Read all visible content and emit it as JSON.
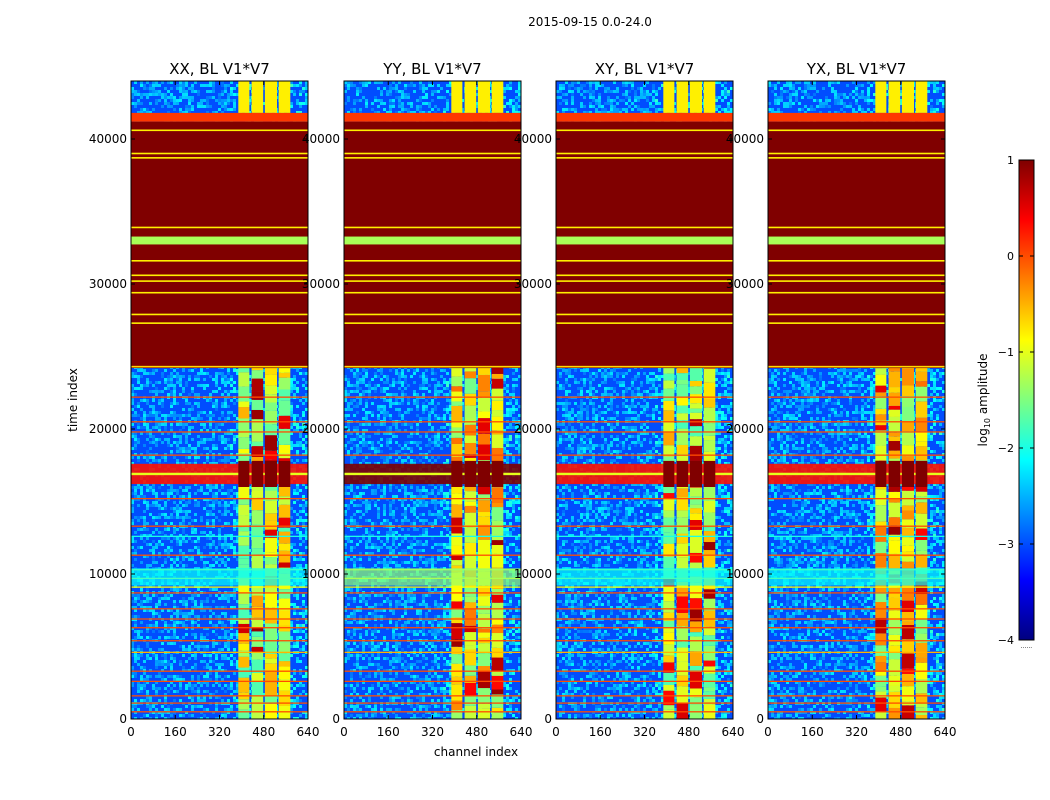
{
  "figure": {
    "suptitle": "2015-09-15 0.0-24.0",
    "xlabel": "channel index",
    "ylabel": "time index"
  },
  "colorbar": {
    "label": "log",
    "label_sub": "10",
    "label_tail": " amplitude",
    "range": [
      -4,
      1
    ],
    "ticks": [
      1,
      0,
      -1,
      -2,
      -3,
      -4
    ],
    "tick_labels": [
      "1",
      "0",
      "−1",
      "−2",
      "−3",
      "−4"
    ],
    "colormap": "jet",
    "colors": [
      "#00007f",
      "#0000ff",
      "#007fff",
      "#00ffff",
      "#7fff7f",
      "#ffff00",
      "#ff7f00",
      "#ff0000",
      "#7f0000"
    ],
    "footer_text": "......"
  },
  "chart_data": {
    "type": "heatmap",
    "panels": [
      {
        "title": "XX, BL V1*V7",
        "variant": "xx"
      },
      {
        "title": "YY, BL V1*V7",
        "variant": "yy"
      },
      {
        "title": "XY, BL V1*V7",
        "variant": "xy"
      },
      {
        "title": "YX, BL V1*V7",
        "variant": "yx"
      }
    ],
    "x_range": [
      0,
      640
    ],
    "y_range": [
      0,
      44000
    ],
    "x_ticks": [
      0,
      160,
      320,
      480,
      640
    ],
    "x_tick_labels": [
      "0",
      "160",
      "320",
      "480",
      "640"
    ],
    "y_ticks": [
      0,
      10000,
      20000,
      30000,
      40000
    ],
    "y_tick_labels": [
      "0",
      "10000",
      "20000",
      "30000",
      "40000"
    ],
    "value_units": "log10 amplitude",
    "background_level": -3.0,
    "flagged_blocks": [
      {
        "t0": 24200,
        "t1": 41200,
        "level": 1.0
      },
      {
        "t0": 41200,
        "t1": 41800,
        "level": 0.1
      }
    ],
    "thin_lines": [
      {
        "t": 24300,
        "level": -0.7,
        "full_width": true
      },
      {
        "t": 27300,
        "level": -0.8,
        "full_width": true
      },
      {
        "t": 27900,
        "level": -0.8,
        "full_width": true
      },
      {
        "t": 29400,
        "level": -0.8,
        "full_width": true
      },
      {
        "t": 30200,
        "level": -0.8,
        "full_width": true
      },
      {
        "t": 30600,
        "level": -0.8,
        "full_width": true
      },
      {
        "t": 31600,
        "level": -0.8,
        "full_width": true
      },
      {
        "t": 32900,
        "level": -1.3,
        "full_width": true
      },
      {
        "t": 33100,
        "level": -1.3,
        "full_width": true
      },
      {
        "t": 33900,
        "level": -0.8,
        "full_width": true
      },
      {
        "t": 38700,
        "level": -0.8,
        "full_width": true
      },
      {
        "t": 39000,
        "level": -0.8,
        "full_width": true
      },
      {
        "t": 40600,
        "level": -0.8,
        "full_width": true
      },
      {
        "t": 22200,
        "level": 0.0
      },
      {
        "t": 20500,
        "level": 0.0
      },
      {
        "t": 19800,
        "level": 0.0
      },
      {
        "t": 18200,
        "level": 0.0
      },
      {
        "t": 15200,
        "level": 0.0
      },
      {
        "t": 13300,
        "level": 0.0
      },
      {
        "t": 12600,
        "level": -2.0
      },
      {
        "t": 11300,
        "level": 0.0
      },
      {
        "t": 10300,
        "level": -1.2
      },
      {
        "t": 9700,
        "level": -1.0
      },
      {
        "t": 9100,
        "level": -0.9
      },
      {
        "t": 8700,
        "level": 0.0
      },
      {
        "t": 7600,
        "level": 0.0
      },
      {
        "t": 6900,
        "level": 0.0
      },
      {
        "t": 6300,
        "level": 0.0
      },
      {
        "t": 5400,
        "level": 0.0
      },
      {
        "t": 4600,
        "level": -0.5
      },
      {
        "t": 3300,
        "level": 0.0
      },
      {
        "t": 2600,
        "level": 0.0
      },
      {
        "t": 1600,
        "level": 0.0
      },
      {
        "t": 1100,
        "level": 0.0
      },
      {
        "t": 500,
        "level": 0.0
      }
    ],
    "channel_bands": [
      {
        "c0": 388,
        "c1": 428,
        "level": -1.0
      },
      {
        "c0": 436,
        "c1": 478,
        "level": -1.0
      },
      {
        "c0": 484,
        "c1": 528,
        "level": -1.0
      },
      {
        "c0": 534,
        "c1": 576,
        "level": -1.0
      }
    ],
    "rfi_events": [
      {
        "t0": 16200,
        "t1": 17600,
        "level": 1.0,
        "spans_all_channels": true
      },
      {
        "t0": 9200,
        "t1": 10400,
        "level": -1.4,
        "spans_all_channels": true
      }
    ]
  }
}
